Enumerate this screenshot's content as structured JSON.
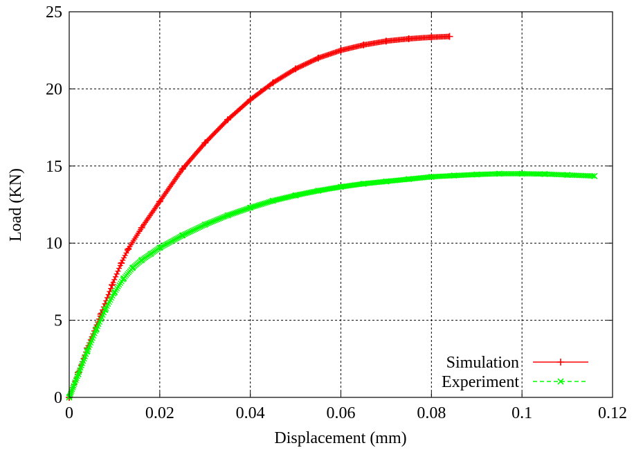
{
  "chart_data": {
    "type": "line",
    "title": "",
    "xlabel": "Displacement (mm)",
    "ylabel": "Load (KN)",
    "xlim": [
      0,
      0.12
    ],
    "ylim": [
      0,
      25
    ],
    "x_ticks": [
      0,
      0.02,
      0.04,
      0.06,
      0.08,
      0.1,
      0.12
    ],
    "x_tick_labels": [
      "0",
      "0.02",
      "0.04",
      "0.06",
      "0.08",
      "0.1",
      "0.12"
    ],
    "y_ticks": [
      0,
      5,
      10,
      15,
      20,
      25
    ],
    "y_tick_labels": [
      "0",
      "5",
      "10",
      "15",
      "20",
      "25"
    ],
    "grid": true,
    "legend_position": "bottom-right",
    "series": [
      {
        "name": "Simulation",
        "color": "#ff0000",
        "line_style": "solid",
        "marker": "plus",
        "x": [
          0,
          0.002,
          0.004,
          0.007,
          0.0095,
          0.0115,
          0.013,
          0.016,
          0.02,
          0.025,
          0.03,
          0.035,
          0.04,
          0.045,
          0.05,
          0.055,
          0.06,
          0.065,
          0.07,
          0.075,
          0.08,
          0.084
        ],
        "y": [
          0,
          1.6,
          3.2,
          5.4,
          7.3,
          8.7,
          9.6,
          11.0,
          12.7,
          14.8,
          16.5,
          18.0,
          19.3,
          20.4,
          21.3,
          22.0,
          22.5,
          22.85,
          23.1,
          23.25,
          23.35,
          23.4
        ]
      },
      {
        "name": "Experiment",
        "color": "#00ff00",
        "line_style": "dashed",
        "marker": "cross",
        "x": [
          0,
          0.002,
          0.004,
          0.006,
          0.008,
          0.01,
          0.012,
          0.014,
          0.016,
          0.018,
          0.02,
          0.025,
          0.03,
          0.035,
          0.04,
          0.045,
          0.05,
          0.055,
          0.06,
          0.065,
          0.07,
          0.075,
          0.08,
          0.085,
          0.09,
          0.095,
          0.1,
          0.105,
          0.11,
          0.116
        ],
        "y": [
          0,
          1.5,
          3.0,
          4.4,
          5.7,
          6.8,
          7.7,
          8.4,
          8.9,
          9.3,
          9.7,
          10.5,
          11.2,
          11.8,
          12.3,
          12.75,
          13.1,
          13.4,
          13.65,
          13.85,
          14.0,
          14.15,
          14.3,
          14.38,
          14.45,
          14.5,
          14.5,
          14.48,
          14.42,
          14.35
        ]
      }
    ]
  }
}
